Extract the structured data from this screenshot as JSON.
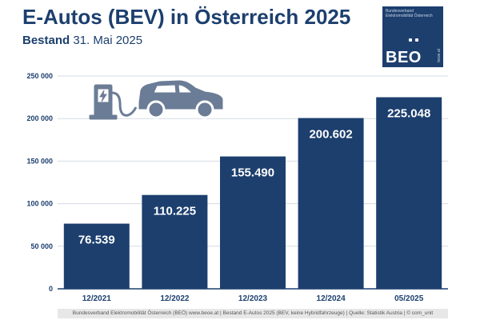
{
  "header": {
    "title": "E-Autos (BEV) in Österreich 2025",
    "subtitle_bold": "Bestand",
    "subtitle_date": "31. Mai 2025"
  },
  "logo": {
    "org": "Bundesverband Elektromobilität Österreich",
    "mark": "BEO",
    "url": "beoe.at"
  },
  "footer": {
    "text": "Bundesverband Elektromobilität Österreich (BEÖ) www.beoe.at | Bestand E-Autos 2025 (BEV, keine Hybridfahrzeuge) | Quelle: Statistik Austria | © com_unit"
  },
  "illustration": {
    "icons": [
      "charging-station-icon",
      "car-icon"
    ],
    "color": "#6b7c96"
  },
  "chart_data": {
    "type": "bar",
    "categories": [
      "12/2021",
      "12/2022",
      "12/2023",
      "12/2024",
      "05/2025"
    ],
    "values": [
      76539,
      110225,
      155490,
      200602,
      225048
    ],
    "value_labels": [
      "76.539",
      "110.225",
      "155.490",
      "200.602",
      "225.048"
    ],
    "yticks": [
      0,
      50000,
      100000,
      150000,
      200000,
      250000
    ],
    "ytick_labels": [
      "0",
      "50 000",
      "100 000",
      "150 000",
      "200 000",
      "250 000"
    ],
    "ylim": [
      0,
      250000
    ],
    "grid": true,
    "bar_color": "#1c3f6e",
    "grid_color": "#d6dbe3"
  }
}
